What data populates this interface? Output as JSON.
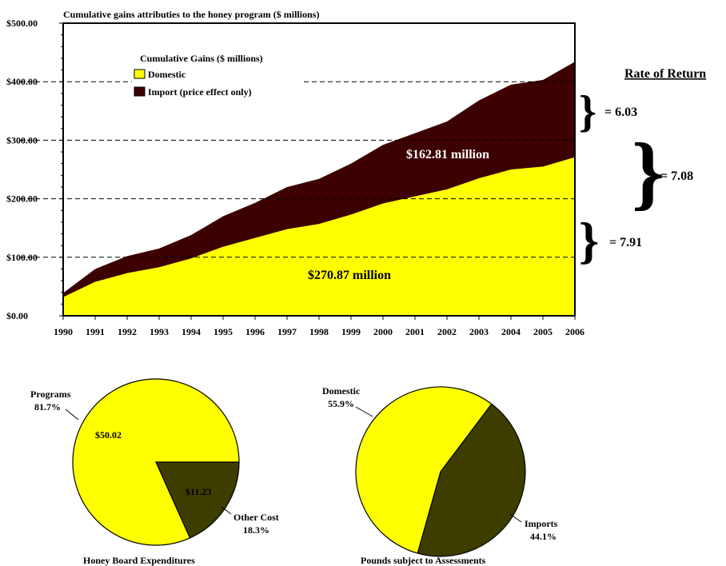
{
  "chart_data": [
    {
      "type": "area",
      "stacked": true,
      "title": "Cumulative gains attributies to the honey program ($ millions)",
      "x": [
        "1990",
        "1991",
        "1992",
        "1993",
        "1994",
        "1995",
        "1996",
        "1997",
        "1998",
        "1999",
        "2000",
        "2001",
        "2002",
        "2003",
        "2004",
        "2005",
        "2006"
      ],
      "ylim": [
        0,
        500
      ],
      "yticks": [
        "$0.00",
        "$100.00",
        "$200.00",
        "$300.00",
        "$400.00",
        "$500.00"
      ],
      "ytick_values": [
        0,
        100,
        200,
        300,
        400,
        500
      ],
      "gridlines": [
        100,
        200,
        300,
        400
      ],
      "legend_title": "Cumulative Gains ($ millions)",
      "series": [
        {
          "name": "Domestic",
          "color": "#ffff00",
          "values": [
            32,
            58,
            73,
            83,
            98,
            118,
            133,
            148,
            157,
            173,
            192,
            204,
            216,
            235,
            250,
            255,
            271
          ]
        },
        {
          "name": "Import (price effect only)",
          "color": "#3d0000",
          "values": [
            7,
            22,
            29,
            32,
            40,
            52,
            60,
            72,
            77,
            87,
            100,
            108,
            116,
            133,
            145,
            148,
            163
          ]
        }
      ],
      "annotations": {
        "import_total": "$162.81  million",
        "domestic_total": "$270.87 million"
      }
    },
    {
      "type": "pie",
      "title": "Honey Board Expenditures",
      "slices": [
        {
          "label": "Programs",
          "percent": "81.7%",
          "value": 81.7,
          "amount": "$50.02",
          "color": "#ffff00"
        },
        {
          "label": "Other Cost",
          "percent": "18.3%",
          "value": 18.3,
          "amount": "$11.23",
          "color": "#3d3d00"
        }
      ]
    },
    {
      "type": "pie",
      "title": "Pounds subject to Assessments",
      "slices": [
        {
          "label": "Domestic",
          "percent": "55.9%",
          "value": 55.9,
          "color": "#ffff00"
        },
        {
          "label": "Imports",
          "percent": "44.1%",
          "value": 44.1,
          "color": "#3d3d00"
        }
      ]
    }
  ],
  "rate_of_return": {
    "heading": "Rate of Return",
    "import_rate": "= 6.03",
    "total_rate": "= 7.08",
    "domestic_rate": "= 7.91"
  }
}
